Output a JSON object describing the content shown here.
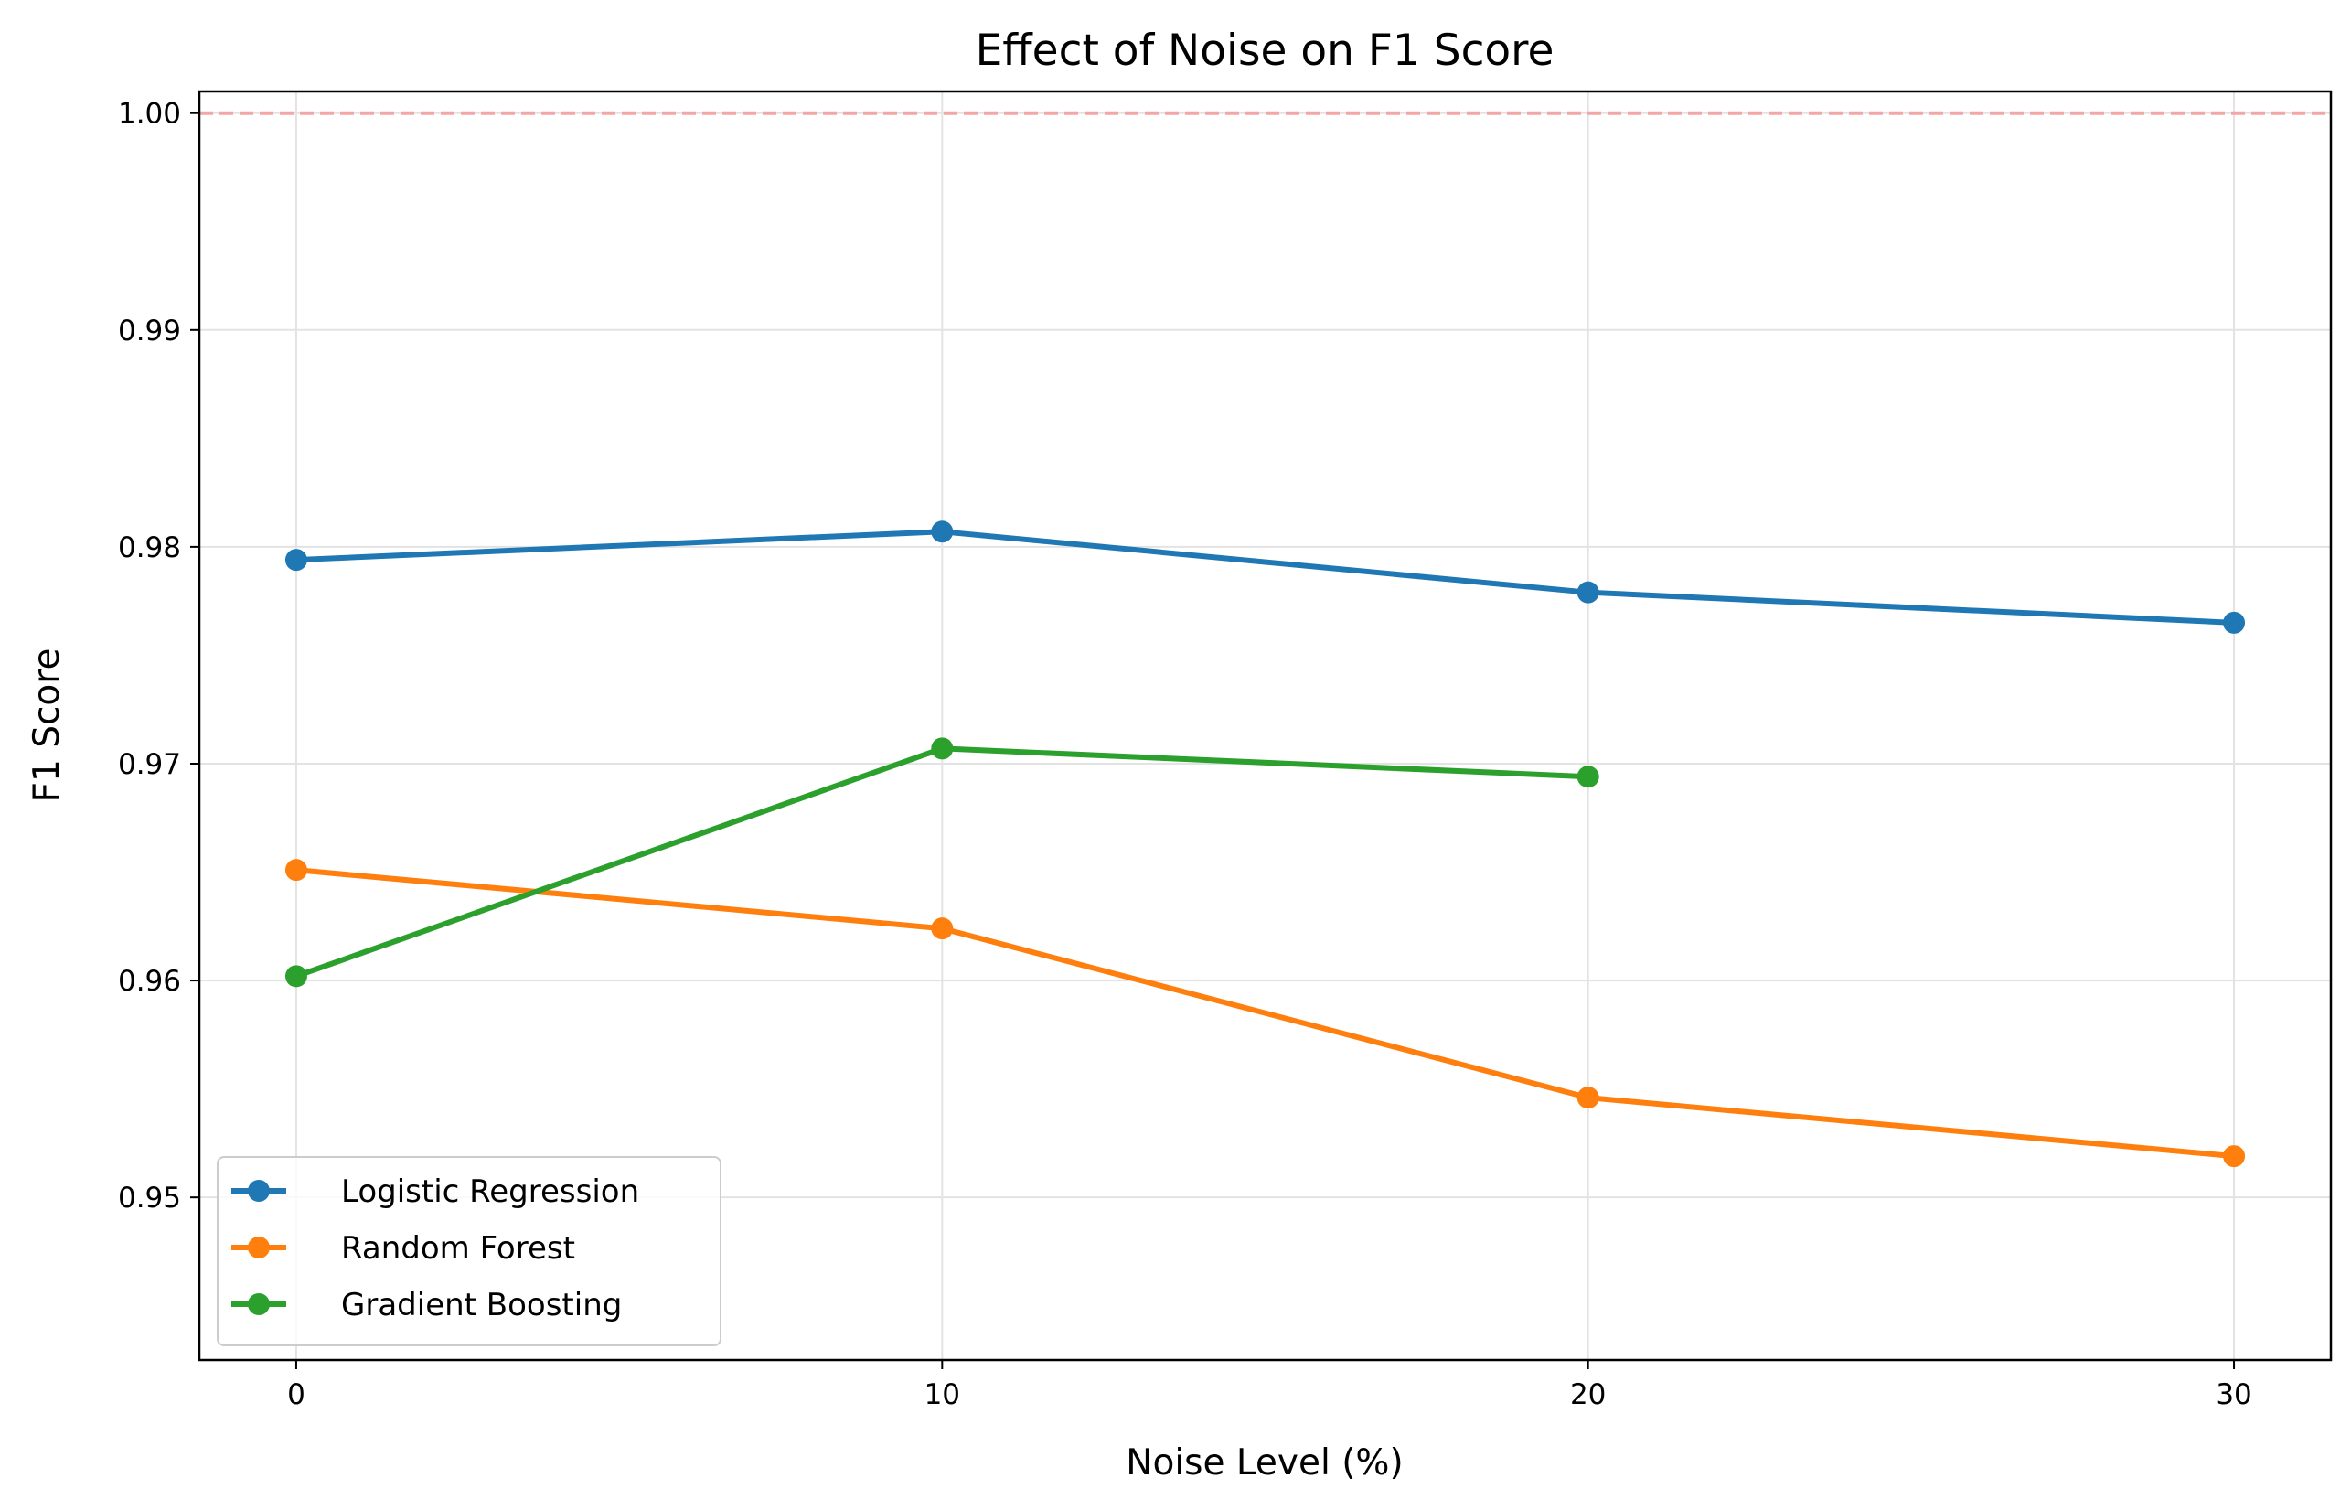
{
  "chart_data": {
    "type": "line",
    "title": "Effect of Noise on F1 Score",
    "xlabel": "Noise Level (%)",
    "ylabel": "F1 Score",
    "x_ticks": [
      0,
      10,
      20,
      30
    ],
    "y_ticks": [
      0.95,
      0.96,
      0.97,
      0.98,
      0.99,
      1.0
    ],
    "y_tick_labels": [
      "0.95",
      "0.96",
      "0.97",
      "0.98",
      "0.99",
      "1.00"
    ],
    "xlim": [
      -1.5,
      31.5
    ],
    "ylim": [
      0.9425,
      1.001
    ],
    "grid": true,
    "legend_position": "lower-left",
    "reference_line": {
      "y": 1.0,
      "style": "dashed",
      "color": "#f4a5a5"
    },
    "series": [
      {
        "name": "Logistic Regression",
        "color": "#1f77b4",
        "x": [
          0,
          10,
          20,
          30
        ],
        "values": [
          0.9794,
          0.9807,
          0.9779,
          0.9765
        ]
      },
      {
        "name": "Random Forest",
        "color": "#ff7f0e",
        "x": [
          0,
          10,
          20,
          30
        ],
        "values": [
          0.9651,
          0.9624,
          0.9546,
          0.9519
        ]
      },
      {
        "name": "Gradient Boosting",
        "color": "#2ca02c",
        "x": [
          0,
          10,
          20
        ],
        "values": [
          0.9602,
          0.9707,
          0.9694
        ]
      }
    ]
  }
}
